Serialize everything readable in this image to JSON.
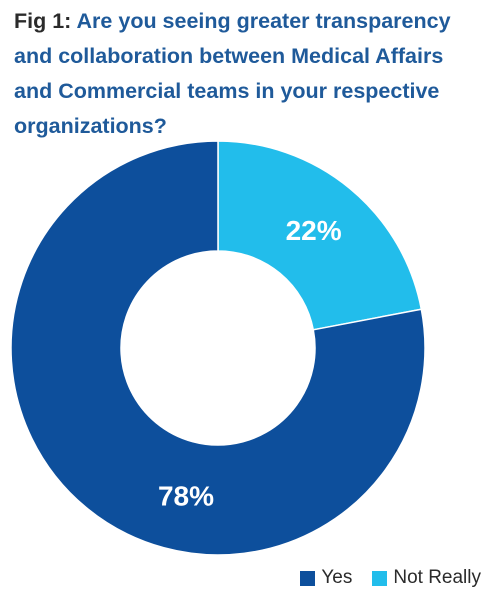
{
  "figure": {
    "prefix": "Fig 1:",
    "question": "Are you seeing greater transparency and collaboration between Medical Affairs and Commercial teams in your respective organizations?"
  },
  "colors": {
    "yes": "#0d4f9c",
    "not_really": "#22bdeb",
    "title_blue": "#1f5a9a"
  },
  "chart_data": {
    "type": "pie",
    "style": "donut",
    "title": "Fig 1: Are you seeing greater transparency and collaboration between Medical Affairs and Commercial teams in your respective organizations?",
    "categories": [
      "Yes",
      "Not Really"
    ],
    "values": [
      78,
      22
    ],
    "data_labels": [
      "78%",
      "22%"
    ],
    "legend_position": "bottom-right",
    "start_angle": "12 o'clock, clockwise starting with Not Really"
  },
  "legend": [
    {
      "label": "Yes",
      "color": "#0d4f9c"
    },
    {
      "label": "Not Really",
      "color": "#22bdeb"
    }
  ]
}
